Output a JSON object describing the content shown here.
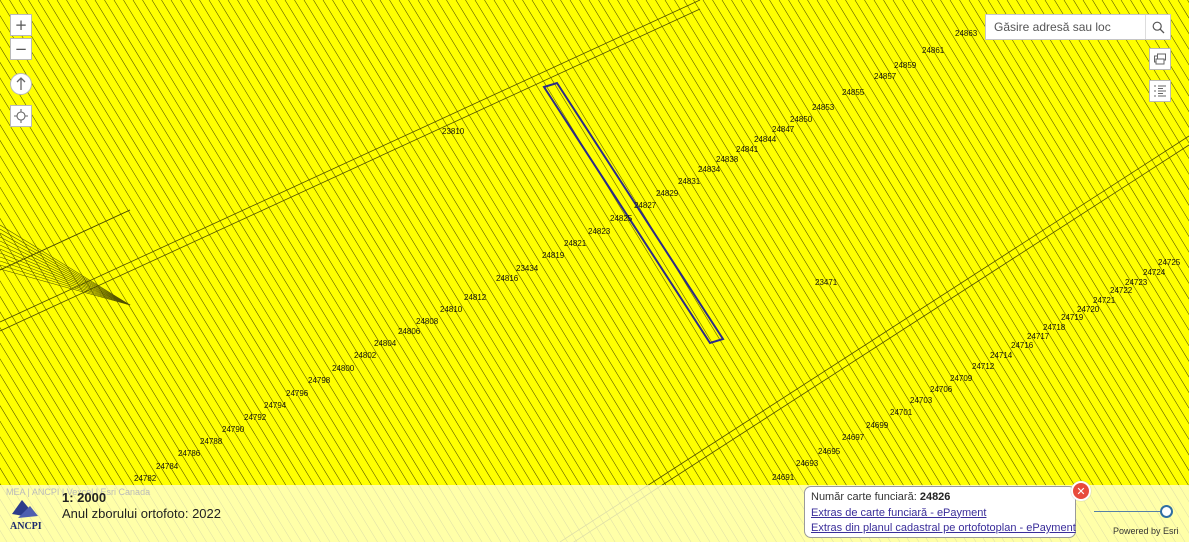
{
  "map": {
    "background_color": "#ffff00",
    "line_color": "#505000",
    "selection_color": "#2b2b8a",
    "parcel_labels": [
      "24863",
      "24861",
      "24859",
      "24857",
      "24855",
      "24853",
      "24850",
      "24847",
      "24844",
      "24841",
      "24838",
      "24834",
      "24831",
      "24829",
      "24827",
      "24825",
      "24823",
      "24821",
      "24819",
      "23434",
      "24816",
      "24812",
      "24810",
      "24808",
      "24806",
      "24804",
      "24802",
      "24800",
      "24798",
      "24796",
      "24794",
      "24792",
      "24790",
      "24788",
      "24786",
      "24784",
      "24782",
      "23810",
      "23471",
      "24725",
      "24724",
      "24723",
      "24722",
      "24721",
      "24720",
      "24719",
      "24718",
      "24717",
      "24716",
      "24714",
      "24712",
      "24709",
      "24706",
      "24703",
      "24701",
      "24699",
      "24697",
      "24695",
      "24693",
      "24691"
    ]
  },
  "controls": {
    "zoom_in_icon": "plus-icon",
    "zoom_out_icon": "minus-icon",
    "north_icon": "north-arrow-icon",
    "locate_icon": "crosshair-icon",
    "basemap_icon": "layers-icon",
    "legend_icon": "list-icon"
  },
  "search": {
    "placeholder": "Găsire adresă sau loc",
    "icon": "search-icon"
  },
  "footer": {
    "attribution": "MEA | ANCPI | Vexcel | Esri Canada",
    "scale": "1: 2000",
    "ortho_year": "Anul zborului ortofoto: 2022",
    "logo_text": "ANCPI",
    "powered_by": "Powered by Esri",
    "opacity_level": 1.0
  },
  "popup": {
    "label": "Număr carte funciară:",
    "number": "24826",
    "link1": "Extras de carte funciară - ePayment",
    "link2": "Extras din planul cadastral pe ortofotoplan - ePayment",
    "close_icon": "close-icon"
  }
}
